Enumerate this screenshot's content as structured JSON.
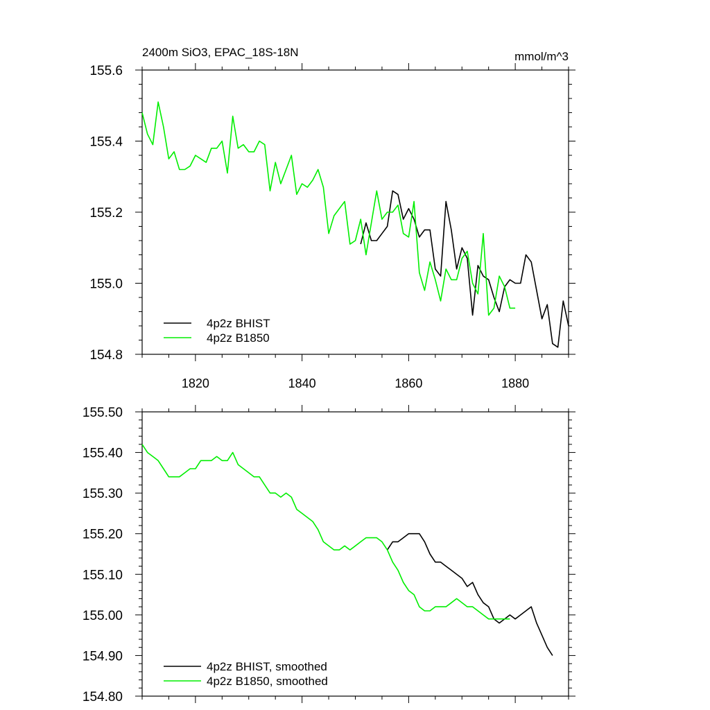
{
  "colors": {
    "bhist": "#000000",
    "b1850": "#00ee00",
    "frame": "#000000",
    "background": "#ffffff"
  },
  "chart_data": [
    {
      "type": "line",
      "title": "2400m SiO3, EPAC_18S-18N",
      "units": "mmol/m^3",
      "xlim": [
        1810,
        1890
      ],
      "ylim": [
        154.8,
        155.6
      ],
      "xticks": [
        {
          "v": 1820,
          "label": "1820"
        },
        {
          "v": 1840,
          "label": "1840"
        },
        {
          "v": 1860,
          "label": "1860"
        },
        {
          "v": 1880,
          "label": "1880"
        }
      ],
      "yticks": [
        {
          "v": 155.6,
          "label": "155.6"
        },
        {
          "v": 155.4,
          "label": "155.4"
        },
        {
          "v": 155.2,
          "label": "155.2"
        },
        {
          "v": 155.0,
          "label": "155.0"
        },
        {
          "v": 154.8,
          "label": "154.8"
        }
      ],
      "legend_position": "bottom-left",
      "series": [
        {
          "name": "4p2z BHIST",
          "color": "#000000",
          "x": [
            1851,
            1852,
            1853,
            1854,
            1855,
            1856,
            1857,
            1858,
            1859,
            1860,
            1861,
            1862,
            1863,
            1864,
            1865,
            1866,
            1867,
            1868,
            1869,
            1870,
            1871,
            1872,
            1873,
            1874,
            1875,
            1876,
            1877,
            1878,
            1879,
            1880,
            1881,
            1882,
            1883,
            1884,
            1885,
            1886,
            1887,
            1888,
            1889,
            1890
          ],
          "y": [
            155.11,
            155.17,
            155.12,
            155.12,
            155.14,
            155.16,
            155.26,
            155.25,
            155.18,
            155.21,
            155.18,
            155.13,
            155.15,
            155.15,
            155.04,
            155.02,
            155.23,
            155.15,
            155.04,
            155.1,
            155.07,
            154.91,
            155.05,
            155.02,
            155.01,
            154.96,
            154.92,
            154.99,
            155.01,
            155.0,
            155.0,
            155.08,
            155.06,
            154.98,
            154.9,
            154.94,
            154.83,
            154.82,
            154.95,
            154.88
          ]
        },
        {
          "name": "4p2z B1850",
          "color": "#00ee00",
          "x": [
            1810,
            1811,
            1812,
            1813,
            1814,
            1815,
            1816,
            1817,
            1818,
            1819,
            1820,
            1821,
            1822,
            1823,
            1824,
            1825,
            1826,
            1827,
            1828,
            1829,
            1830,
            1831,
            1832,
            1833,
            1834,
            1835,
            1836,
            1837,
            1838,
            1839,
            1840,
            1841,
            1842,
            1843,
            1844,
            1845,
            1846,
            1847,
            1848,
            1849,
            1850,
            1851,
            1852,
            1853,
            1854,
            1855,
            1856,
            1857,
            1858,
            1859,
            1860,
            1861,
            1862,
            1863,
            1864,
            1865,
            1866,
            1867,
            1868,
            1869,
            1870,
            1871,
            1872,
            1873,
            1874,
            1875,
            1876,
            1877,
            1878,
            1879,
            1880
          ],
          "y": [
            155.48,
            155.42,
            155.39,
            155.51,
            155.44,
            155.35,
            155.37,
            155.32,
            155.32,
            155.33,
            155.36,
            155.35,
            155.34,
            155.38,
            155.38,
            155.4,
            155.31,
            155.47,
            155.38,
            155.39,
            155.37,
            155.37,
            155.4,
            155.39,
            155.26,
            155.34,
            155.28,
            155.32,
            155.36,
            155.25,
            155.28,
            155.27,
            155.29,
            155.32,
            155.27,
            155.14,
            155.19,
            155.21,
            155.23,
            155.11,
            155.12,
            155.18,
            155.08,
            155.17,
            155.26,
            155.18,
            155.2,
            155.2,
            155.22,
            155.14,
            155.13,
            155.23,
            155.03,
            154.98,
            155.06,
            155.01,
            154.95,
            155.04,
            155.01,
            155.01,
            155.07,
            155.09,
            155.0,
            154.97,
            155.14,
            154.91,
            154.93,
            155.02,
            154.99,
            154.93,
            154.93
          ]
        }
      ]
    },
    {
      "type": "line",
      "xlim": [
        1810,
        1890
      ],
      "ylim": [
        154.8,
        155.5
      ],
      "xticks": [
        {
          "v": 1820,
          "label": ""
        },
        {
          "v": 1840,
          "label": ""
        },
        {
          "v": 1860,
          "label": ""
        },
        {
          "v": 1880,
          "label": ""
        }
      ],
      "yticks": [
        {
          "v": 155.5,
          "label": "155.50"
        },
        {
          "v": 155.4,
          "label": "155.40"
        },
        {
          "v": 155.3,
          "label": "155.30"
        },
        {
          "v": 155.2,
          "label": "155.20"
        },
        {
          "v": 155.1,
          "label": "155.10"
        },
        {
          "v": 155.0,
          "label": "155.00"
        },
        {
          "v": 154.9,
          "label": "154.90"
        },
        {
          "v": 154.8,
          "label": "154.80"
        }
      ],
      "legend_position": "bottom-left",
      "series": [
        {
          "name": "4p2z BHIST, smoothed",
          "color": "#000000",
          "x": [
            1856,
            1857,
            1858,
            1859,
            1860,
            1861,
            1862,
            1863,
            1864,
            1865,
            1866,
            1867,
            1868,
            1869,
            1870,
            1871,
            1872,
            1873,
            1874,
            1875,
            1876,
            1877,
            1878,
            1879,
            1880,
            1881,
            1882,
            1883,
            1884,
            1885,
            1886,
            1887
          ],
          "y": [
            155.16,
            155.18,
            155.18,
            155.19,
            155.2,
            155.2,
            155.2,
            155.18,
            155.15,
            155.13,
            155.13,
            155.12,
            155.11,
            155.1,
            155.09,
            155.07,
            155.08,
            155.05,
            155.03,
            155.02,
            154.99,
            154.98,
            154.99,
            155.0,
            154.99,
            155.0,
            155.01,
            155.02,
            154.98,
            154.95,
            154.92,
            154.9
          ]
        },
        {
          "name": "4p2z B1850, smoothed",
          "color": "#00ee00",
          "x": [
            1810,
            1811,
            1812,
            1813,
            1814,
            1815,
            1816,
            1817,
            1818,
            1819,
            1820,
            1821,
            1822,
            1823,
            1824,
            1825,
            1826,
            1827,
            1828,
            1829,
            1830,
            1831,
            1832,
            1833,
            1834,
            1835,
            1836,
            1837,
            1838,
            1839,
            1840,
            1841,
            1842,
            1843,
            1844,
            1845,
            1846,
            1847,
            1848,
            1849,
            1850,
            1851,
            1852,
            1853,
            1854,
            1855,
            1856,
            1857,
            1858,
            1859,
            1860,
            1861,
            1862,
            1863,
            1864,
            1865,
            1866,
            1867,
            1868,
            1869,
            1870,
            1871,
            1872,
            1873,
            1874,
            1875,
            1876,
            1877,
            1878,
            1879
          ],
          "y": [
            155.42,
            155.4,
            155.39,
            155.38,
            155.36,
            155.34,
            155.34,
            155.34,
            155.35,
            155.36,
            155.36,
            155.38,
            155.38,
            155.38,
            155.39,
            155.38,
            155.38,
            155.4,
            155.37,
            155.36,
            155.35,
            155.34,
            155.34,
            155.32,
            155.3,
            155.3,
            155.29,
            155.3,
            155.29,
            155.26,
            155.25,
            155.24,
            155.23,
            155.21,
            155.18,
            155.17,
            155.16,
            155.16,
            155.17,
            155.16,
            155.17,
            155.18,
            155.19,
            155.19,
            155.19,
            155.18,
            155.16,
            155.13,
            155.11,
            155.08,
            155.06,
            155.05,
            155.02,
            155.01,
            155.01,
            155.02,
            155.02,
            155.02,
            155.03,
            155.04,
            155.03,
            155.02,
            155.02,
            155.01,
            155.0,
            154.99,
            154.99,
            154.99,
            154.99,
            154.99
          ]
        }
      ]
    }
  ]
}
